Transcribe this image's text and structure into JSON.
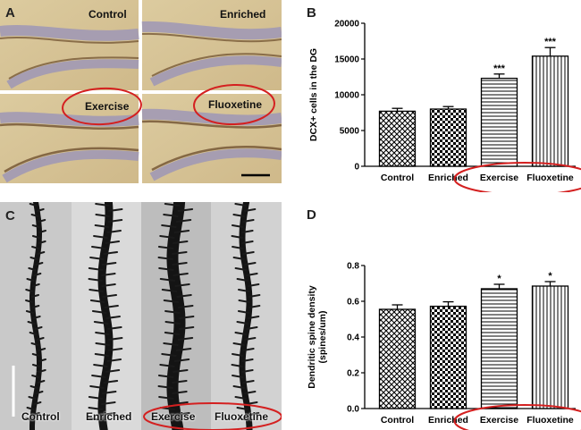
{
  "panels": {
    "a": {
      "letter": "A",
      "labels": [
        "Control",
        "Enriched",
        "Exercise",
        "Fluoxetine"
      ]
    },
    "b": {
      "letter": "B"
    },
    "c": {
      "letter": "C",
      "labels": [
        "Control",
        "Enriched",
        "Exercise",
        "Fluoxetine"
      ]
    },
    "d": {
      "letter": "D"
    }
  },
  "colors": {
    "annotation_red": "#d42020",
    "bar_outline": "#000000",
    "tissue": "#d9c79b",
    "cell_layer": "#9d97b6"
  },
  "chart_data": [
    {
      "type": "bar",
      "categories": [
        "Control",
        "Enriched",
        "Exercise",
        "Fluoxetine"
      ],
      "values": [
        7700,
        8000,
        12300,
        15400
      ],
      "errors": [
        400,
        350,
        600,
        1200
      ],
      "significance": [
        "",
        "",
        "***",
        "***"
      ],
      "patterns": [
        "diag-cross",
        "checker",
        "horizontal",
        "vertical"
      ],
      "ylabel": "DCX+ cells in the DG",
      "ylim": [
        0,
        20000
      ],
      "yticks": [
        "0",
        "5000",
        "10000",
        "15000",
        "20000"
      ],
      "grid": false
    },
    {
      "type": "bar",
      "categories": [
        "Control",
        "Enriched",
        "Exercise",
        "Fluoxetine"
      ],
      "values": [
        0.555,
        0.572,
        0.67,
        0.685
      ],
      "errors": [
        0.025,
        0.025,
        0.025,
        0.025
      ],
      "significance": [
        "",
        "",
        "*",
        "*"
      ],
      "patterns": [
        "diag-cross",
        "checker",
        "horizontal",
        "vertical"
      ],
      "ylabel": "Dendritic spine density (spines/um)",
      "ylabel_lines": [
        "Dendritic spine density",
        "(spines/um)"
      ],
      "ylim": [
        0,
        0.8
      ],
      "yticks": [
        "0.0",
        "0.2",
        "0.4",
        "0.6",
        "0.8"
      ],
      "grid": false
    }
  ]
}
